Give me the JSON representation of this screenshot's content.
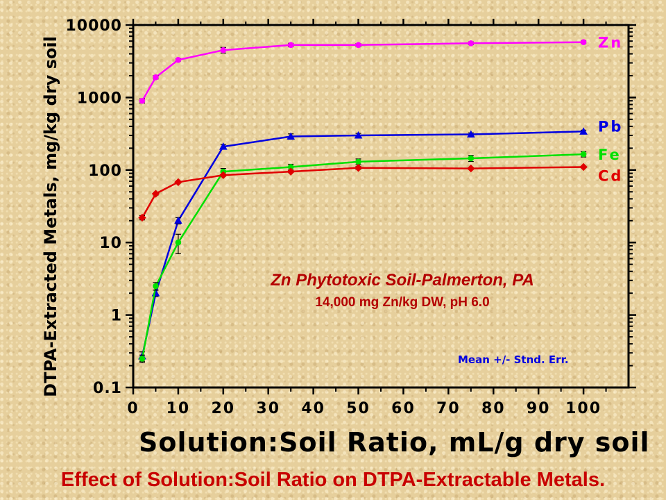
{
  "chart_data": {
    "type": "line",
    "xlabel": "Solution:Soil Ratio, mL/g dry soil",
    "ylabel": "DTPA-Extracted Metals, mg/kg dry soil",
    "y_scale": "log",
    "xlim": [
      0,
      110
    ],
    "ylim": [
      0.1,
      10000
    ],
    "x_ticks": [
      "0",
      "10",
      "20",
      "30",
      "40",
      "50",
      "60",
      "70",
      "80",
      "90",
      "100"
    ],
    "y_ticks": [
      "0.1",
      "1",
      "10",
      "100",
      "1000",
      "10000"
    ],
    "y_tick_values": [
      0.1,
      1,
      10,
      100,
      1000,
      10000
    ],
    "annotation_title": "Zn Phytotoxic Soil-Palmerton, PA",
    "annotation_subtitle": "14,000 mg Zn/kg DW, pH 6.0",
    "note": "Mean +/- Stnd. Err.",
    "grid": false,
    "legend_placement": "series labels at right end of lines",
    "series": [
      {
        "name": "Zn",
        "color": "#ff00ff",
        "marker": "circle",
        "x": [
          2,
          5,
          10,
          20,
          35,
          50,
          75,
          100
        ],
        "y": [
          900,
          1900,
          3300,
          4500,
          5300,
          5300,
          5600,
          5800
        ],
        "err": [
          60,
          100,
          120,
          400,
          300,
          250,
          250,
          250
        ]
      },
      {
        "name": "Pb",
        "color": "#0000e0",
        "marker": "triangle",
        "x": [
          2,
          5,
          10,
          20,
          35,
          50,
          75,
          100
        ],
        "y": [
          0.27,
          2.0,
          20,
          210,
          290,
          300,
          310,
          340
        ],
        "err": [
          0.04,
          0.2,
          2,
          15,
          25,
          20,
          15,
          15
        ]
      },
      {
        "name": "Fe",
        "color": "#00e000",
        "marker": "circle",
        "x": [
          2,
          5,
          10,
          20,
          35,
          50,
          75,
          100
        ],
        "y": [
          0.25,
          2.5,
          10,
          95,
          110,
          130,
          145,
          165
        ],
        "err": [
          0.03,
          0.3,
          3,
          10,
          10,
          12,
          14,
          14
        ]
      },
      {
        "name": "Cd",
        "color": "#e00000",
        "marker": "diamond",
        "x": [
          2,
          5,
          10,
          20,
          35,
          50,
          75,
          100
        ],
        "y": [
          22,
          47,
          68,
          85,
          95,
          107,
          105,
          110
        ],
        "err": [
          1.5,
          2,
          2,
          3,
          3,
          5,
          3,
          3
        ]
      }
    ]
  },
  "footer": "Effect of Solution:Soil Ratio on DTPA-Extractable Metals."
}
